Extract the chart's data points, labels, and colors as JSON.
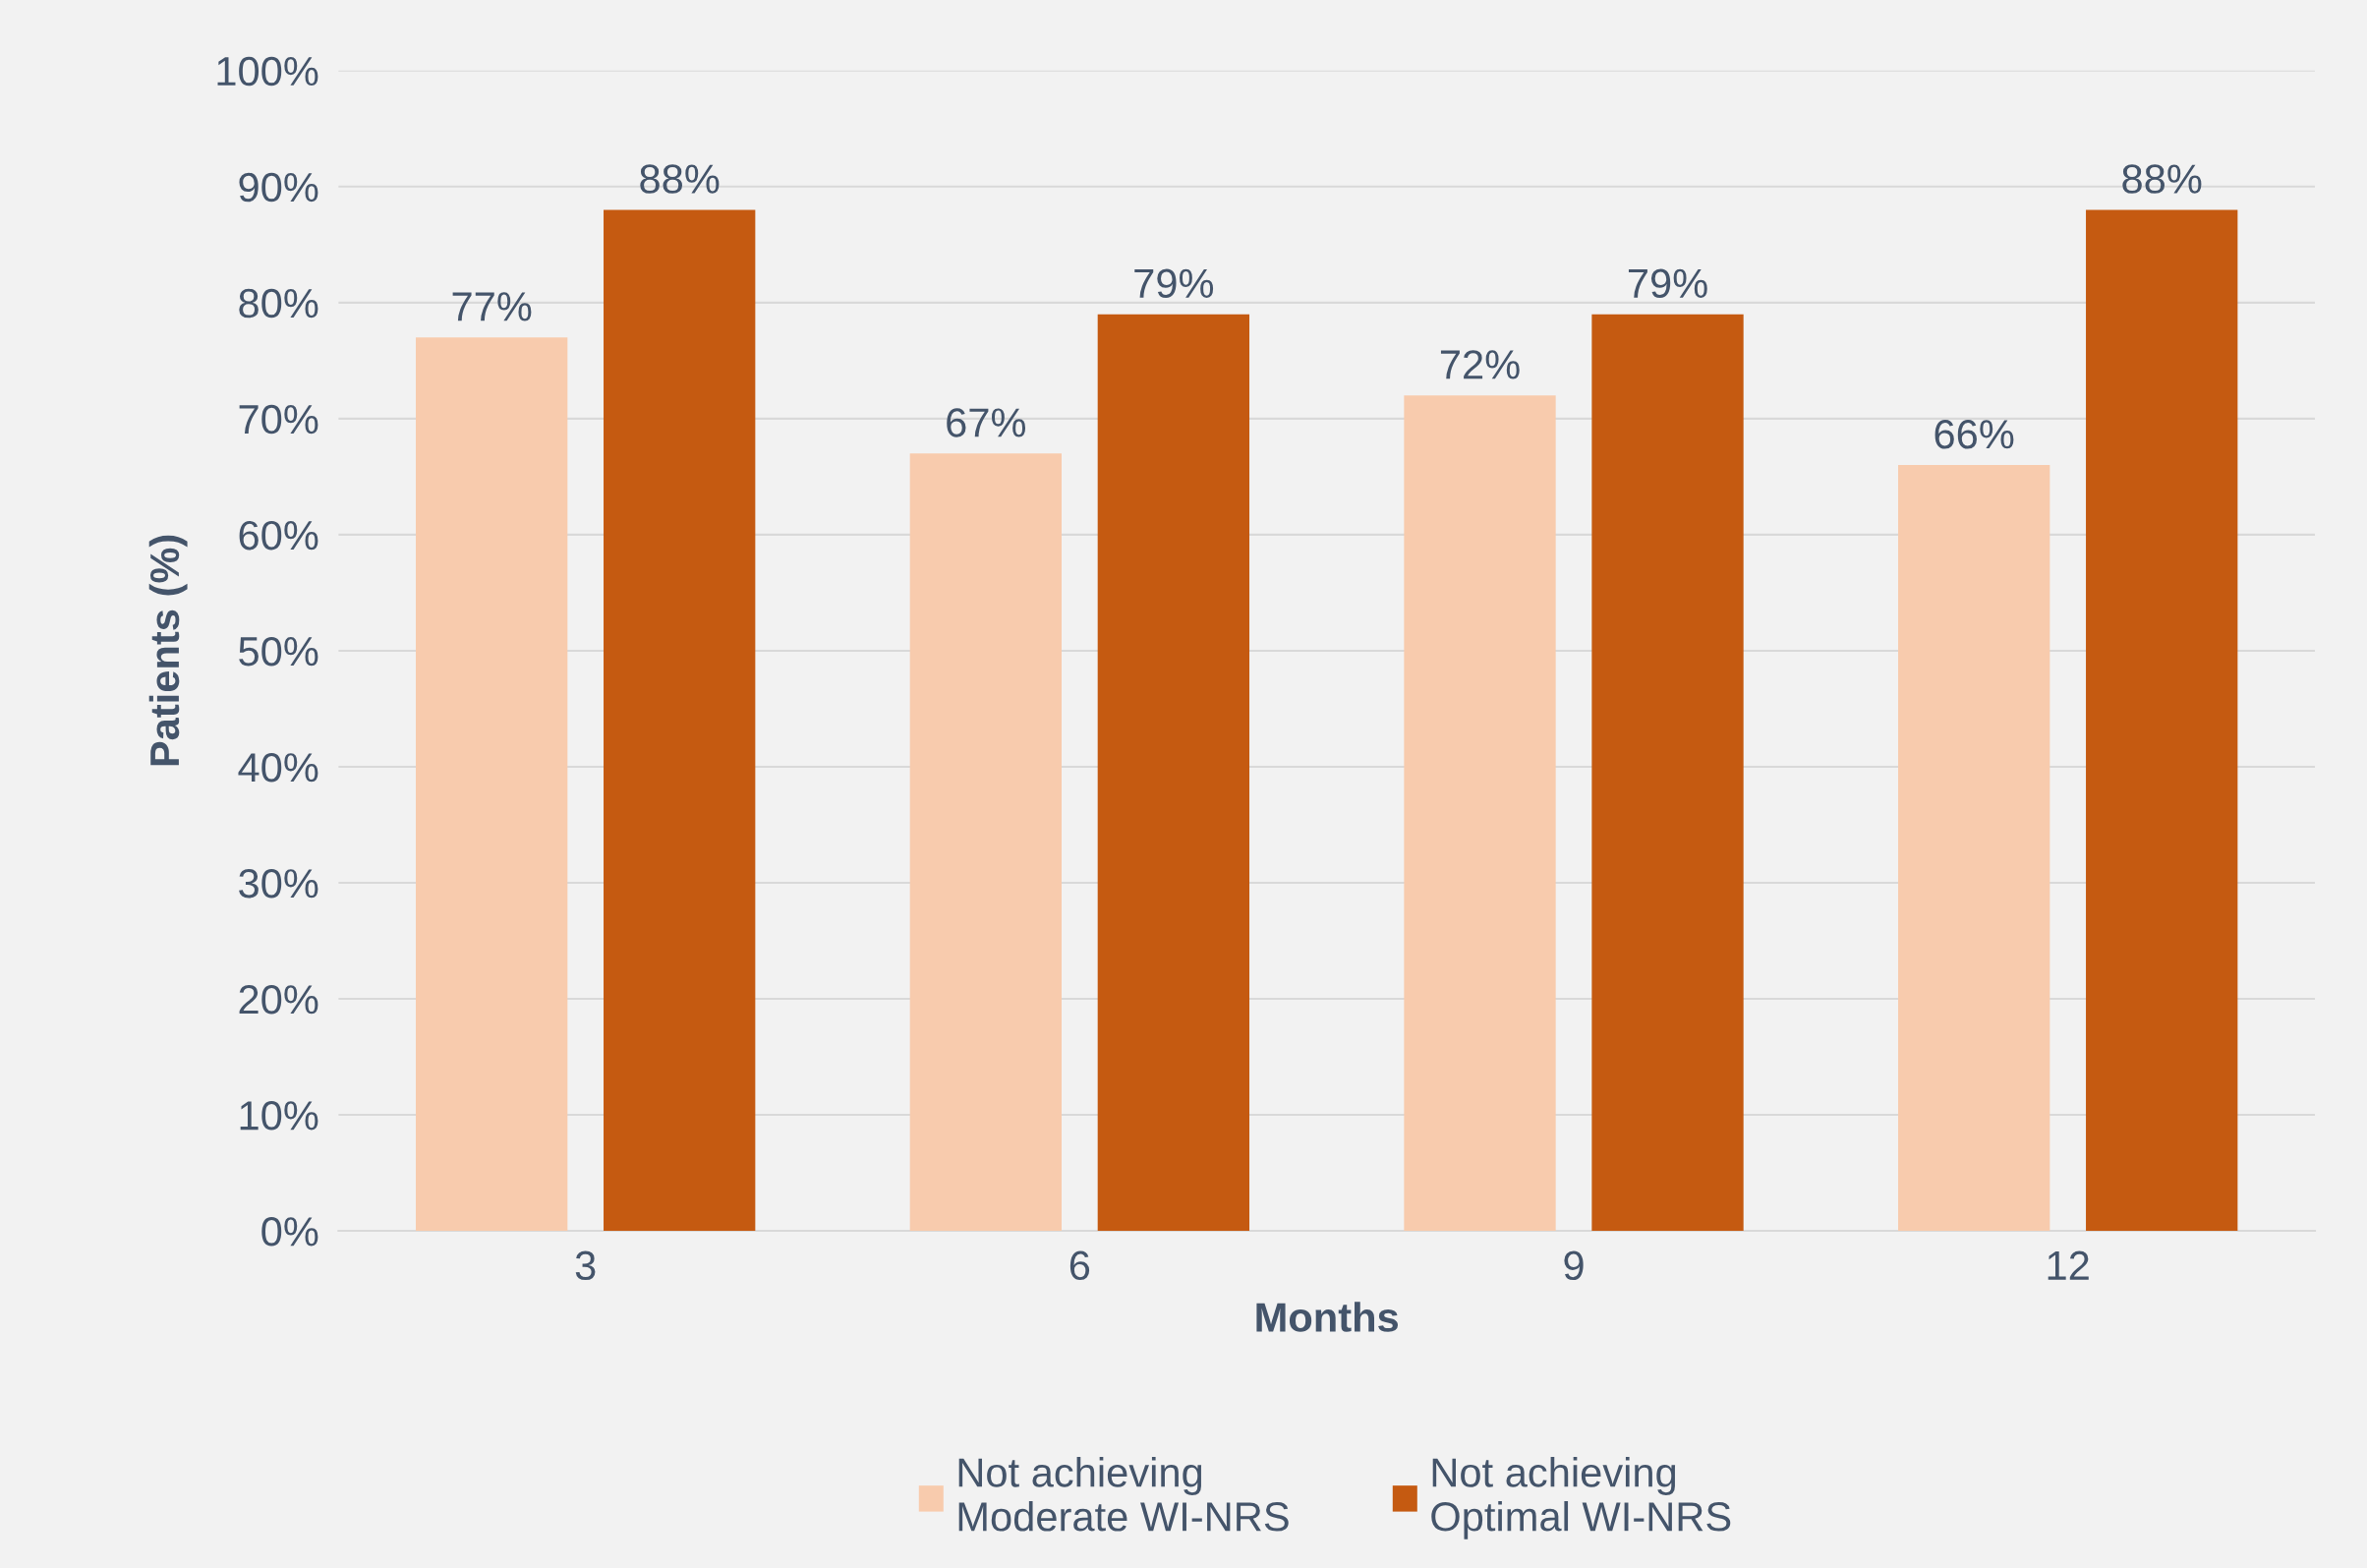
{
  "chart_data": {
    "type": "bar",
    "xlabel": "Months",
    "ylabel": "Patients (%)",
    "categories": [
      "3",
      "6",
      "9",
      "12"
    ],
    "series": [
      {
        "name": "Not achieving\nModerate WI-NRS",
        "color": "#f8cbad",
        "values": [
          77,
          67,
          72,
          66
        ]
      },
      {
        "name": "Not achieving\nOptimal WI-NRS",
        "color": "#c55a11",
        "values": [
          88,
          79,
          79,
          88
        ]
      }
    ],
    "ylim": [
      0,
      100
    ],
    "yticks": [
      {
        "value": 0,
        "label": "0%"
      },
      {
        "value": 10,
        "label": "10%"
      },
      {
        "value": 20,
        "label": "20%"
      },
      {
        "value": 30,
        "label": "30%"
      },
      {
        "value": 40,
        "label": "40%"
      },
      {
        "value": 50,
        "label": "50%"
      },
      {
        "value": 60,
        "label": "60%"
      },
      {
        "value": 70,
        "label": "70%"
      },
      {
        "value": 80,
        "label": "80%"
      },
      {
        "value": 90,
        "label": "90%"
      },
      {
        "value": 100,
        "label": "100%"
      }
    ],
    "value_labels": [
      [
        "77%",
        "67%",
        "72%",
        "66%"
      ],
      [
        "88%",
        "79%",
        "79%",
        "88%"
      ]
    ],
    "grid": "y",
    "legend": "bottom"
  }
}
